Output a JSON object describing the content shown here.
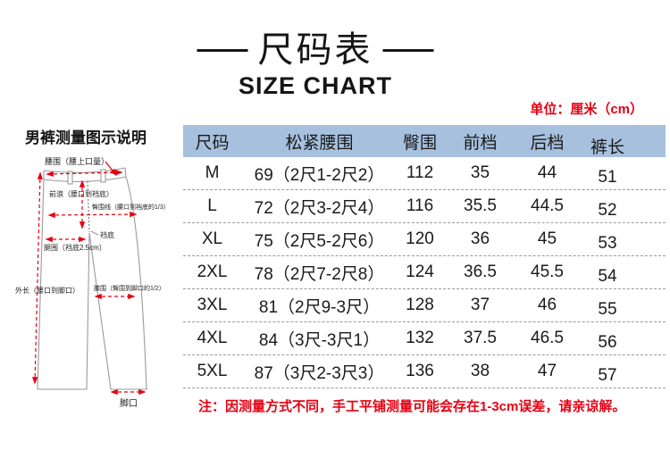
{
  "header": {
    "title_cn": "尺码表",
    "title_en": "SIZE CHART"
  },
  "diagram": {
    "title": "男裤测量图示说明",
    "labels": {
      "waist": "腰围（腰上口量）",
      "front_rise": "前浪（腰口到裆底）",
      "hip_line": "臀围线（腰口到裆底的1/3）",
      "crotch": "裆底",
      "thigh": "腿围（裆底2.5cm）",
      "outer_length": "外长（腰口到脚口）",
      "knee": "膝围（臀围到脚口的1/2）",
      "leg_opening": "脚口"
    }
  },
  "table": {
    "unit_label": "单位：厘米（cm）",
    "headers": [
      "尺码",
      "松紧腰围",
      "臀围",
      "前档",
      "后档",
      "裤长"
    ],
    "rows": [
      [
        "M",
        "69（2尺1-2尺2）",
        "112",
        "35",
        "44",
        "51"
      ],
      [
        "L",
        "72（2尺3-2尺4）",
        "116",
        "35.5",
        "44.5",
        "52"
      ],
      [
        "XL",
        "75（2尺5-2尺6）",
        "120",
        "36",
        "45",
        "53"
      ],
      [
        "2XL",
        "78（2尺7-2尺8）",
        "124",
        "36.5",
        "45.5",
        "54"
      ],
      [
        "3XL",
        "81（2尺9-3尺）",
        "128",
        "37",
        "46",
        "55"
      ],
      [
        "4XL",
        "84（3尺-3尺1）",
        "132",
        "37.5",
        "46.5",
        "56"
      ],
      [
        "5XL",
        "87（3尺2-3尺3）",
        "136",
        "38",
        "47",
        "57"
      ]
    ],
    "note": "注：因测量方式不同，手工平铺测量可能会存在1-3cm误差，请亲谅解。"
  },
  "colors": {
    "accent_red": "#e60012",
    "table_header_bg": "#a6c0de",
    "pants_outline_gray": "#9a9a9a"
  }
}
